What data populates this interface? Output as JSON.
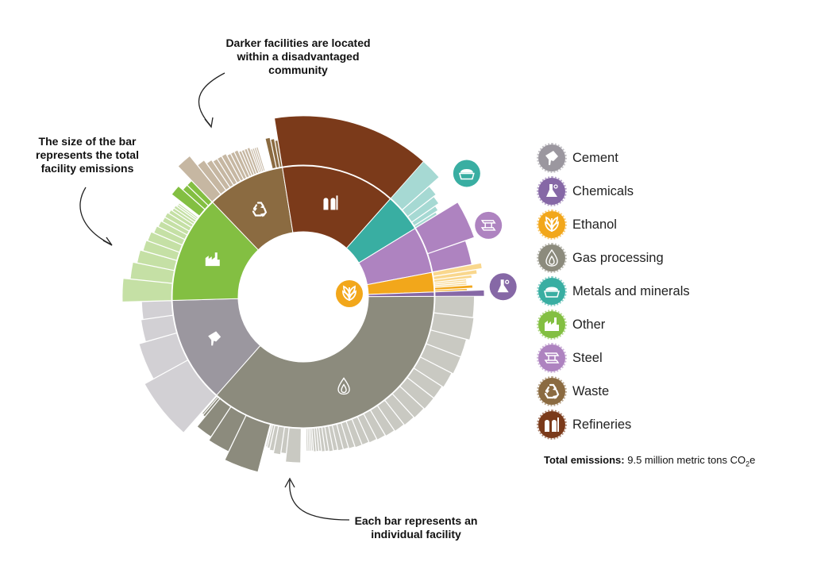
{
  "annotations": {
    "darker": [
      "Darker facilities are located",
      "within a disadvantaged",
      "community"
    ],
    "size": [
      "The size of the bar",
      "represents the total",
      "facility emissions"
    ],
    "each": [
      "Each bar represents an",
      "individual facility"
    ]
  },
  "total": {
    "label": "Total emissions:",
    "value_prefix": "9.5 million metric tons CO",
    "value_sub": "2",
    "value_suffix": "e"
  },
  "legend": [
    {
      "label": "Cement",
      "color": "#9b979f",
      "icon": "cement-icon"
    },
    {
      "label": "Chemicals",
      "color": "#8668a6",
      "icon": "chemicals-icon"
    },
    {
      "label": "Ethanol",
      "color": "#f2a71b",
      "icon": "ethanol-icon"
    },
    {
      "label": "Gas processing",
      "color": "#8c8b7d",
      "icon": "gas-processing-icon"
    },
    {
      "label": "Metals and minerals",
      "color": "#39aea2",
      "icon": "metals-icon"
    },
    {
      "label": "Other",
      "color": "#83bf42",
      "icon": "other-icon"
    },
    {
      "label": "Steel",
      "color": "#ae83c0",
      "icon": "steel-icon"
    },
    {
      "label": "Waste",
      "color": "#8b6b41",
      "icon": "waste-icon"
    },
    {
      "label": "Refineries",
      "color": "#7b3a1a",
      "icon": "refineries-icon"
    }
  ],
  "chart_data": {
    "type": "sunburst",
    "unit": "share of total emissions",
    "sectors": [
      {
        "name": "Gas processing",
        "color": "#8c8b7d",
        "light": "#c9c9c2",
        "value": 35.0,
        "facilities": [
          [
            2.2,
            0
          ],
          [
            2.3,
            0
          ],
          [
            1.9,
            0
          ],
          [
            1.9,
            0
          ],
          [
            1.7,
            0
          ],
          [
            1.5,
            0
          ],
          [
            1.5,
            0
          ],
          [
            1.4,
            0
          ],
          [
            1.3,
            0
          ],
          [
            1.2,
            0
          ],
          [
            1.1,
            0
          ],
          [
            1.0,
            0
          ],
          [
            0.9,
            0
          ],
          [
            0.8,
            0
          ],
          [
            0.8,
            0
          ],
          [
            0.7,
            0
          ],
          [
            0.6,
            0
          ],
          [
            0.6,
            0
          ],
          [
            0.5,
            0
          ],
          [
            0.5,
            0
          ],
          [
            0.4,
            0
          ],
          [
            0.4,
            0
          ],
          [
            0.3,
            0
          ],
          [
            0.3,
            0
          ],
          [
            0.3,
            0
          ],
          [
            0.2,
            0
          ],
          [
            0.2,
            0
          ],
          [
            0.2,
            0
          ],
          [
            0.2,
            0
          ],
          [
            0.1,
            0
          ],
          [
            0.1,
            0
          ],
          [
            0.1,
            0
          ],
          [
            0.1,
            0
          ],
          [
            0.1,
            0
          ],
          [
            0.1,
            0
          ],
          [
            1.6,
            0
          ],
          [
            0.6,
            0
          ],
          [
            0.8,
            0
          ],
          [
            0.5,
            0
          ],
          [
            0.3,
            0
          ],
          [
            0.2,
            0
          ],
          [
            0.1,
            0
          ],
          [
            3.4,
            1
          ],
          [
            2.3,
            1
          ],
          [
            1.8,
            1
          ],
          [
            0.3,
            1
          ],
          [
            0.2,
            1
          ],
          [
            0.1,
            1
          ]
        ]
      },
      {
        "name": "Cement",
        "color": "#9b979f",
        "light": "#d2d0d4",
        "value": 12.5,
        "facilities": [
          [
            5.3,
            0
          ],
          [
            3.4,
            0
          ],
          [
            2.1,
            0
          ],
          [
            1.7,
            0
          ]
        ]
      },
      {
        "name": "Other",
        "color": "#83bf42",
        "light": "#c5e0a5",
        "value": 12.7,
        "facilities": [
          [
            2.0,
            0
          ],
          [
            1.5,
            0
          ],
          [
            1.2,
            0
          ],
          [
            1.0,
            0
          ],
          [
            0.9,
            0
          ],
          [
            0.7,
            0
          ],
          [
            0.6,
            0
          ],
          [
            0.5,
            0
          ],
          [
            0.5,
            0
          ],
          [
            0.4,
            0
          ],
          [
            0.3,
            0
          ],
          [
            0.3,
            0
          ],
          [
            0.2,
            0
          ],
          [
            0.2,
            0
          ],
          [
            0.1,
            0
          ],
          [
            0.1,
            0
          ],
          [
            1.0,
            1
          ],
          [
            0.6,
            1
          ],
          [
            0.6,
            1
          ]
        ]
      },
      {
        "name": "Waste",
        "color": "#8b6b41",
        "light": "#c6b7a2",
        "value": 9.2,
        "facilities": [
          [
            1.4,
            0
          ],
          [
            0.8,
            0
          ],
          [
            0.6,
            0
          ],
          [
            0.5,
            0
          ],
          [
            0.5,
            0
          ],
          [
            0.5,
            0
          ],
          [
            0.4,
            0
          ],
          [
            0.4,
            0
          ],
          [
            0.4,
            0
          ],
          [
            0.3,
            0
          ],
          [
            0.3,
            0
          ],
          [
            0.3,
            0
          ],
          [
            0.3,
            0
          ],
          [
            0.2,
            0
          ],
          [
            0.2,
            0
          ],
          [
            0.2,
            0
          ],
          [
            0.2,
            0
          ],
          [
            0.1,
            0
          ],
          [
            0.1,
            0
          ],
          [
            0.1,
            0
          ],
          [
            0.1,
            0
          ],
          [
            0.1,
            0
          ],
          [
            0.1,
            0
          ],
          [
            0.1,
            0
          ],
          [
            0.1,
            0
          ],
          [
            0.1,
            0
          ],
          [
            0.5,
            1
          ],
          [
            0.4,
            1
          ],
          [
            0.3,
            1
          ]
        ]
      },
      {
        "name": "Refineries",
        "color": "#7b3a1a",
        "light": "#7b3a1a",
        "value": 13.5,
        "facilities": [
          [
            13.5,
            1
          ]
        ]
      },
      {
        "name": "Metals and minerals",
        "color": "#39aea2",
        "light": "#a6d9d3",
        "value": 4.5,
        "facilities": [
          [
            1.9,
            0
          ],
          [
            1.0,
            0
          ],
          [
            0.8,
            0
          ],
          [
            0.5,
            0
          ],
          [
            0.3,
            0
          ]
        ]
      },
      {
        "name": "Steel",
        "color": "#ae83c0",
        "light": "#ae83c0",
        "value": 5.5,
        "facilities": [
          [
            3.3,
            1
          ],
          [
            2.2,
            1
          ]
        ]
      },
      {
        "name": "Ethanol",
        "color": "#f2a71b",
        "light": "#f9d78d",
        "value": 2.3,
        "facilities": [
          [
            0.5,
            0
          ],
          [
            0.4,
            0
          ],
          [
            0.3,
            0
          ],
          [
            0.2,
            0
          ],
          [
            0.2,
            0
          ],
          [
            0.2,
            0
          ],
          [
            0.3,
            1
          ],
          [
            0.2,
            1
          ]
        ]
      },
      {
        "name": "Chemicals",
        "color": "#8668a6",
        "light": "#8668a6",
        "value": 0.5,
        "facilities": [
          [
            0.5,
            1
          ]
        ]
      }
    ]
  }
}
